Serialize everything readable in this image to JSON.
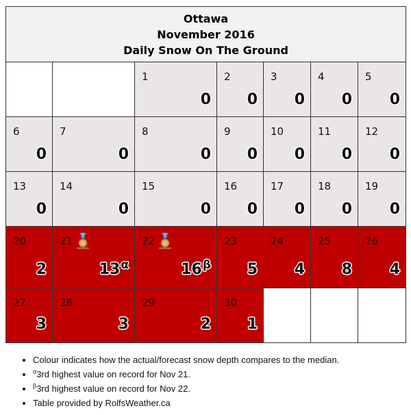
{
  "header": {
    "city": "Ottawa",
    "month": "November 2016",
    "subtitle": "Daily Snow On The Ground"
  },
  "colors": {
    "normal": "#eae6e7",
    "above": "#c00000",
    "empty": "#ffffff"
  },
  "weeks": [
    [
      null,
      null,
      {
        "day": "1",
        "value": "0",
        "status": "normal"
      },
      {
        "day": "2",
        "value": "0",
        "status": "normal"
      },
      {
        "day": "3",
        "value": "0",
        "status": "normal"
      },
      {
        "day": "4",
        "value": "0",
        "status": "normal"
      },
      {
        "day": "5",
        "value": "0",
        "status": "normal"
      }
    ],
    [
      {
        "day": "6",
        "value": "0",
        "status": "normal"
      },
      {
        "day": "7",
        "value": "0",
        "status": "normal"
      },
      {
        "day": "8",
        "value": "0",
        "status": "normal"
      },
      {
        "day": "9",
        "value": "0",
        "status": "normal"
      },
      {
        "day": "10",
        "value": "0",
        "status": "normal"
      },
      {
        "day": "11",
        "value": "0",
        "status": "normal"
      },
      {
        "day": "12",
        "value": "0",
        "status": "normal"
      }
    ],
    [
      {
        "day": "13",
        "value": "0",
        "status": "normal"
      },
      {
        "day": "14",
        "value": "0",
        "status": "normal"
      },
      {
        "day": "15",
        "value": "0",
        "status": "normal"
      },
      {
        "day": "16",
        "value": "0",
        "status": "normal"
      },
      {
        "day": "17",
        "value": "0",
        "status": "normal"
      },
      {
        "day": "18",
        "value": "0",
        "status": "normal"
      },
      {
        "day": "19",
        "value": "0",
        "status": "normal"
      }
    ],
    [
      {
        "day": "20",
        "value": "2",
        "status": "above"
      },
      {
        "day": "21",
        "value": "13",
        "note": "α",
        "medal": "bronze-medal-icon",
        "status": "above"
      },
      {
        "day": "22",
        "value": "16",
        "note": "β",
        "medal": "bronze-medal-icon",
        "status": "above"
      },
      {
        "day": "23",
        "value": "5",
        "status": "above"
      },
      {
        "day": "24",
        "value": "4",
        "status": "above"
      },
      {
        "day": "25",
        "value": "8",
        "status": "above"
      },
      {
        "day": "26",
        "value": "4",
        "status": "above"
      }
    ],
    [
      {
        "day": "27",
        "value": "3",
        "status": "above"
      },
      {
        "day": "28",
        "value": "3",
        "status": "above"
      },
      {
        "day": "29",
        "value": "2",
        "status": "above"
      },
      {
        "day": "30",
        "value": "1",
        "status": "above"
      },
      null,
      null,
      null
    ]
  ],
  "notes": [
    {
      "marker": "",
      "text": "Colour indicates how the actual/forecast snow depth compares to the median."
    },
    {
      "marker": "α",
      "text": "3rd highest value on record for Nov 21."
    },
    {
      "marker": "β",
      "text": "3rd highest value on record for Nov 22."
    },
    {
      "marker": "",
      "text": "Table provided by RolfsWeather.ca"
    }
  ]
}
